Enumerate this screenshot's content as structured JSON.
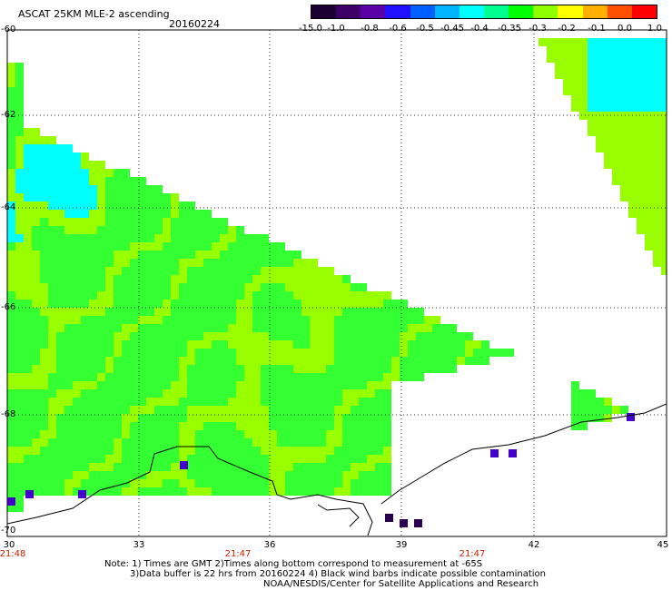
{
  "title": {
    "line1": "ASCAT 25KM MLE-2 ascending",
    "line2": "20160224"
  },
  "colorbar": {
    "labels": [
      "-15.0",
      "-1.0",
      "-0.8",
      "-0.6",
      "-0.5",
      "-0.45",
      "-0.4",
      "-0.35",
      "-0.3",
      "-0.2",
      "-0.1",
      "0.0",
      "1.0"
    ],
    "colors": [
      "#1a0033",
      "#3d0066",
      "#5a00a8",
      "#2010ff",
      "#0060ff",
      "#00b4ff",
      "#00ffff",
      "#00ff90",
      "#00ff00",
      "#90ff00",
      "#ffff00",
      "#ffb000",
      "#ff5000",
      "#ff0000"
    ]
  },
  "axes": {
    "lat_labels": [
      "-60",
      "-62",
      "-64",
      "-66",
      "-68",
      "-70"
    ],
    "lon_labels": [
      "30",
      "33",
      "36",
      "39",
      "42",
      "45"
    ],
    "times": [
      "21:48",
      "21:47",
      "21:47"
    ]
  },
  "notes": {
    "line1": "Note: 1) Times are GMT 2)Times along bottom correspond to measurement at -65S",
    "line2": "3)Data buffer is 22 hrs from 20160224 4) Black wind barbs indicate possible contamination",
    "line3": "NOAA/NESDIS/Center for Satellite Applications and Research"
  },
  "map_colors": {
    "lime": "#99ff00",
    "green": "#33ff33",
    "cyan": "#00ffff",
    "blue": "#0070ff",
    "violet": "#4400cc",
    "dark": "#2a0050",
    "coast": "#000000",
    "grid": "#333333"
  }
}
